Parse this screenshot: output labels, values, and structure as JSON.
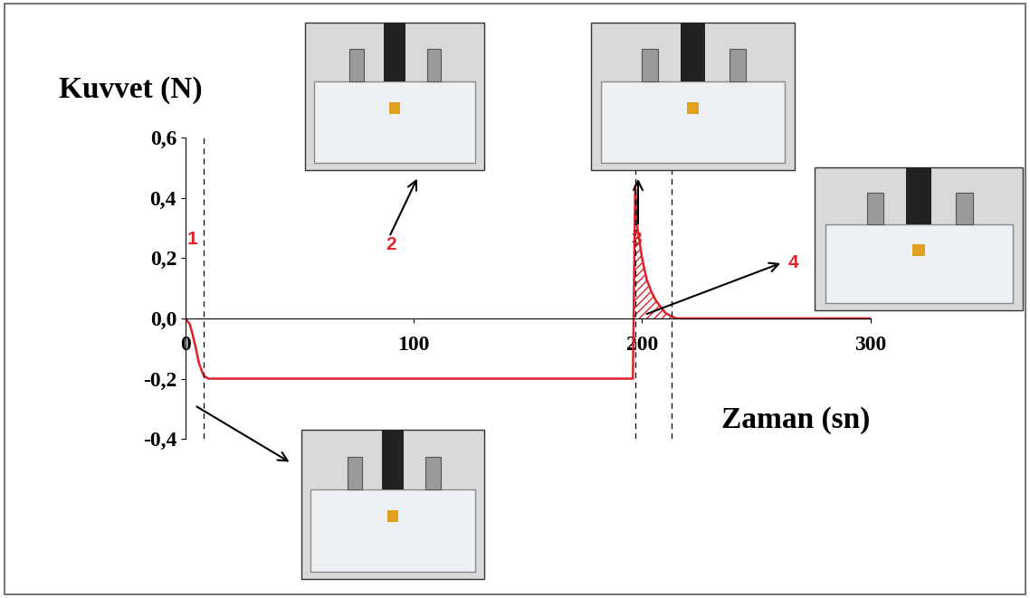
{
  "chart_data": {
    "type": "line",
    "x_label": "Zaman (sn)",
    "y_label": "Kuvvet (N)",
    "x": [
      0,
      2,
      4,
      6,
      8,
      10,
      20,
      50,
      100,
      150,
      196,
      197,
      198,
      200,
      202,
      204,
      206,
      208,
      210,
      212,
      215,
      220,
      250,
      300
    ],
    "values": [
      0,
      -0.02,
      -0.08,
      -0.15,
      -0.19,
      -0.2,
      -0.2,
      -0.2,
      -0.2,
      -0.2,
      -0.2,
      0.44,
      0.3,
      0.2,
      0.13,
      0.09,
      0.06,
      0.04,
      0.02,
      0.01,
      0,
      0,
      0,
      0
    ],
    "color": "#e0202a",
    "annotations": [
      "1",
      "2",
      "3",
      "4"
    ],
    "vlines": [
      8,
      197,
      213
    ],
    "xlim": [
      0,
      300
    ],
    "xticks": [
      0,
      100,
      200,
      300
    ],
    "ylim": [
      -0.4,
      0.6
    ],
    "yticks": [
      {
        "value": -0.4,
        "label": "-0,4"
      },
      {
        "value": -0.2,
        "label": "-0,2"
      },
      {
        "value": 0.0,
        "label": "0,0"
      },
      {
        "value": 0.2,
        "label": "0,2"
      },
      {
        "value": 0.4,
        "label": "0,4"
      },
      {
        "value": 0.6,
        "label": "0,6"
      }
    ],
    "grid": false
  }
}
